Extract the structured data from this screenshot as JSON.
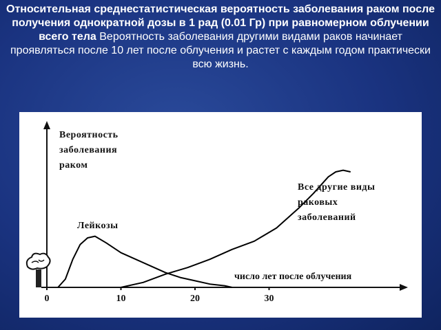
{
  "slide": {
    "title_bold": "Относительная среднестатистическая вероятность заболевания раком после получения однократной дозы в 1 рад (0.01 Гр) при равномерном облучении всего тела",
    "title_text": "Вероятность заболевания другими видами раков  начинает проявляться после 10 лет после облучения и   растет с каждым годом практически всю жизнь."
  },
  "chart_data": {
    "type": "line",
    "y_label": "Вероятность заболевания раком",
    "x_label": "число лет после облучения",
    "xlim": [
      0,
      48
    ],
    "xticks": [
      0,
      10,
      20,
      30
    ],
    "ylim": [
      0,
      1
    ],
    "series": [
      {
        "name": "Лейкозы",
        "color": "#000000",
        "x": [
          1.5,
          2.5,
          3.5,
          4.5,
          5.5,
          6.5,
          8,
          10,
          12,
          14,
          16,
          18,
          20,
          22,
          24,
          25
        ],
        "values": [
          0,
          0.05,
          0.17,
          0.26,
          0.3,
          0.31,
          0.27,
          0.21,
          0.17,
          0.13,
          0.09,
          0.06,
          0.04,
          0.02,
          0.01,
          0
        ]
      },
      {
        "name": "Все другие виды раковых заболеваний",
        "color": "#000000",
        "x": [
          10,
          13,
          16,
          19,
          22,
          25,
          28,
          31,
          34,
          36,
          38,
          39,
          40,
          41
        ],
        "values": [
          0,
          0.03,
          0.08,
          0.12,
          0.17,
          0.23,
          0.28,
          0.36,
          0.48,
          0.57,
          0.67,
          0.7,
          0.71,
          0.7
        ]
      }
    ]
  }
}
